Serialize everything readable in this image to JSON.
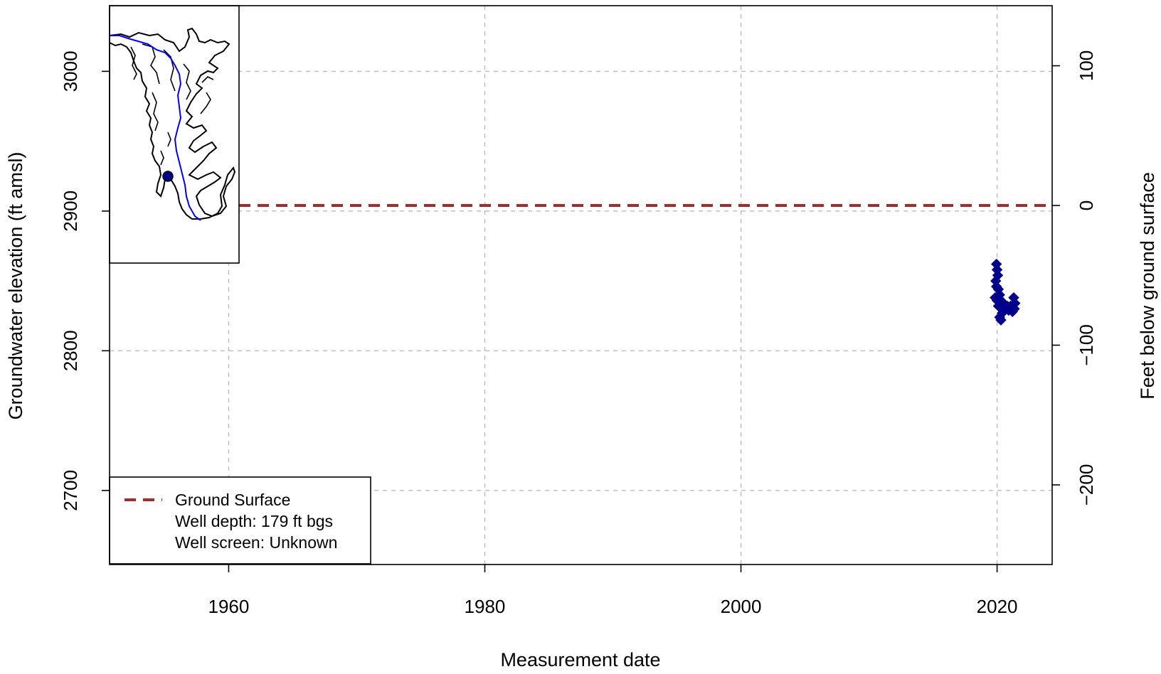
{
  "chart_data": {
    "type": "scatter",
    "xlabel": "Measurement date",
    "ylabel": "Groundwater elevation (ft amsl)",
    "y2label": "Feet below ground surface",
    "xlim": [
      1950.7,
      2024.3
    ],
    "ylim": [
      2647,
      3047
    ],
    "x_ticks": [
      1960,
      1980,
      2000,
      2020
    ],
    "x_tick_labels": [
      "1960",
      "1980",
      "2000",
      "2020"
    ],
    "y_ticks": [
      2700,
      2800,
      2900,
      3000
    ],
    "y_tick_labels": [
      "2700",
      "2800",
      "2900",
      "3000"
    ],
    "y2_ticks": [
      100,
      0,
      -100,
      -200
    ],
    "y2_tick_labels": [
      "100",
      "0",
      "−100",
      "−200"
    ],
    "ground_surface_elevation": 2904,
    "grid": true,
    "legend": {
      "position": "bottom-left",
      "entries": [
        {
          "label": "Ground Surface",
          "style": "dashed-line",
          "color": "#a52a2a"
        },
        {
          "label": "Well depth: 179 ft bgs",
          "style": "none"
        },
        {
          "label": "Well screen: Unknown",
          "style": "none"
        }
      ]
    },
    "series": [
      {
        "marker": "diamond",
        "color": "#00008b",
        "points": [
          {
            "x": 2019.95,
            "y": 2862
          },
          {
            "x": 2020.0,
            "y": 2858
          },
          {
            "x": 2020.05,
            "y": 2854
          },
          {
            "x": 2019.9,
            "y": 2850
          },
          {
            "x": 2019.95,
            "y": 2846
          },
          {
            "x": 2020.1,
            "y": 2844
          },
          {
            "x": 2020.2,
            "y": 2840
          },
          {
            "x": 2019.85,
            "y": 2838
          },
          {
            "x": 2020.0,
            "y": 2836
          },
          {
            "x": 2020.3,
            "y": 2836
          },
          {
            "x": 2020.4,
            "y": 2834
          },
          {
            "x": 2020.6,
            "y": 2833
          },
          {
            "x": 2020.1,
            "y": 2832
          },
          {
            "x": 2020.8,
            "y": 2832
          },
          {
            "x": 2021.05,
            "y": 2832
          },
          {
            "x": 2021.3,
            "y": 2838
          },
          {
            "x": 2021.4,
            "y": 2834
          },
          {
            "x": 2020.5,
            "y": 2830
          },
          {
            "x": 2020.9,
            "y": 2829
          },
          {
            "x": 2021.2,
            "y": 2828
          },
          {
            "x": 2020.4,
            "y": 2827
          },
          {
            "x": 2021.35,
            "y": 2830
          },
          {
            "x": 2020.2,
            "y": 2824
          },
          {
            "x": 2020.3,
            "y": 2822
          }
        ]
      }
    ],
    "inset_map": {
      "position": "top-left",
      "well_location_color": "#00008b",
      "river_color": "#0000ff"
    }
  }
}
